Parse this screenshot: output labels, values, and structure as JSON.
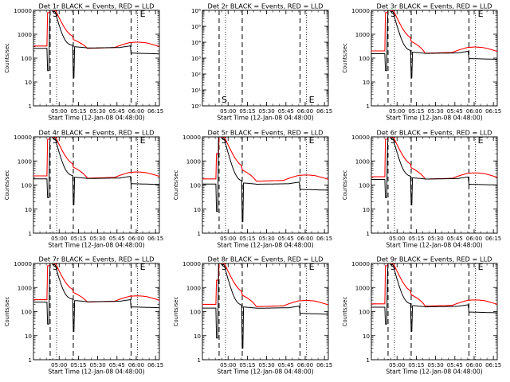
{
  "figure": {
    "background": "#ffffff",
    "frame_color": "#000000",
    "events_color": "#000000",
    "lld_color": "#ff0000"
  },
  "chart_data": [
    {
      "type": "line",
      "title": "Det 1r BLACK = Events, RED = LLD",
      "xlabel": "Start Time (12-Jan-08 04:48:00)",
      "ylabel": "Counts/sec",
      "yscale": "log",
      "ylim": [
        1,
        10000
      ],
      "ytick_labels": [
        "1",
        "10",
        "100",
        "1000",
        "10000"
      ],
      "xtick_labels": [
        "05:00",
        "05:15",
        "05:30",
        "05:45",
        "06:00",
        "06:15"
      ],
      "x_minutes": [
        -2,
        10,
        20,
        30,
        40,
        50,
        60,
        70,
        80,
        90
      ],
      "dashed_markers_min": [
        5,
        23,
        68
      ],
      "dotted_markers_min": [
        10,
        73
      ],
      "marker_labels": [
        {
          "text": "S",
          "at_min": 5
        },
        {
          "text": "E",
          "at_min": 73
        }
      ],
      "has_data": true,
      "profile": "A",
      "events_base": 270,
      "events_step": 170,
      "lld_base": 320,
      "lld_peak": 600
    },
    {
      "type": "line",
      "title": "Det 2r BLACK = Events, RED = LLD",
      "xlabel": "Start Time (12-Jan-08 04:48:00)",
      "ylabel": "",
      "yscale": "log",
      "ylim": [
        1,
        1000000
      ],
      "ytick_labels": [
        "10⁰",
        "10¹",
        "10²",
        "10³",
        "10⁴",
        "10⁵",
        "10⁶"
      ],
      "xtick_labels": [
        "05:00",
        "05:15",
        "05:30",
        "05:45",
        "06:00",
        "06:15"
      ],
      "x_minutes": [
        -2,
        10,
        20,
        30,
        40,
        50,
        60,
        70,
        80,
        90
      ],
      "dashed_markers_min": [
        5,
        23,
        68
      ],
      "dotted_markers_min": [
        10,
        73
      ],
      "marker_labels": [
        {
          "text": "S",
          "at_min": 5
        },
        {
          "text": "E",
          "at_min": 73
        }
      ],
      "has_data": false
    },
    {
      "type": "line",
      "title": "Det 3r BLACK = Events, RED = LLD",
      "xlabel": "Start Time (12-Jan-08 04:48:00)",
      "ylabel": "Counts/sec",
      "yscale": "log",
      "ylim": [
        1,
        10000
      ],
      "ytick_labels": [
        "1",
        "10",
        "100",
        "1000",
        "10000"
      ],
      "xtick_labels": [
        "05:00",
        "05:15",
        "05:30",
        "05:45",
        "06:00",
        "06:15"
      ],
      "x_minutes": [
        -2,
        10,
        20,
        30,
        40,
        50,
        60,
        70,
        80,
        90
      ],
      "dashed_markers_min": [
        5,
        23,
        68
      ],
      "dotted_markers_min": [
        10,
        73
      ],
      "marker_labels": [
        {
          "text": "S",
          "at_min": 5
        },
        {
          "text": "E",
          "at_min": 73
        }
      ],
      "has_data": true,
      "profile": "A",
      "events_base": 160,
      "events_step": 110,
      "lld_base": 200,
      "lld_peak": 500
    },
    {
      "type": "line",
      "title": "Det 4r BLACK = Events, RED = LLD",
      "xlabel": "Start Time (12-Jan-08 04:48:00)",
      "ylabel": "Counts/sec",
      "yscale": "log",
      "ylim": [
        1,
        10000
      ],
      "ytick_labels": [
        "1",
        "10",
        "100",
        "1000",
        "10000"
      ],
      "xtick_labels": [
        "05:00",
        "05:15",
        "05:30",
        "05:45",
        "06:00",
        "06:15"
      ],
      "x_minutes": [
        -2,
        10,
        20,
        30,
        40,
        50,
        60,
        70,
        80,
        90
      ],
      "dashed_markers_min": [
        5,
        23,
        68
      ],
      "dotted_markers_min": [
        10,
        73
      ],
      "marker_labels": [
        {
          "text": "S",
          "at_min": 5
        },
        {
          "text": "E",
          "at_min": 73
        }
      ],
      "has_data": true,
      "profile": "A",
      "events_base": 190,
      "events_step": 180,
      "lld_base": 240,
      "lld_peak": 550
    },
    {
      "type": "line",
      "title": "Det 5r BLACK = Events, RED = LLD",
      "xlabel": "Start Time (12-Jan-08 04:48:00)",
      "ylabel": "Counts/sec",
      "yscale": "log",
      "ylim": [
        1,
        10000
      ],
      "ytick_labels": [
        "1",
        "10",
        "100",
        "1000",
        "10000"
      ],
      "xtick_labels": [
        "05:00",
        "05:15",
        "05:30",
        "05:45",
        "06:00",
        "06:15"
      ],
      "x_minutes": [
        -2,
        10,
        20,
        30,
        40,
        50,
        60,
        70,
        80,
        90
      ],
      "dashed_markers_min": [
        5,
        23,
        68
      ],
      "dotted_markers_min": [
        10,
        73
      ],
      "marker_labels": [
        {
          "text": "S",
          "at_min": 5
        },
        {
          "text": "E",
          "at_min": 73
        }
      ],
      "has_data": true,
      "profile": "B",
      "events_base": 110,
      "events_step": 100,
      "lld_base": 180,
      "lld_peak": 420
    },
    {
      "type": "line",
      "title": "Det 6r BLACK = Events, RED = LLD",
      "xlabel": "Start Time (12-Jan-08 04:48:00)",
      "ylabel": "Counts/sec",
      "yscale": "log",
      "ylim": [
        1,
        10000
      ],
      "ytick_labels": [
        "1",
        "10",
        "100",
        "1000",
        "10000"
      ],
      "xtick_labels": [
        "05:00",
        "05:15",
        "05:30",
        "05:45",
        "06:00",
        "06:15"
      ],
      "x_minutes": [
        -2,
        10,
        20,
        30,
        40,
        50,
        60,
        70,
        80,
        90
      ],
      "dashed_markers_min": [
        5,
        23,
        68
      ],
      "dotted_markers_min": [
        10,
        73
      ],
      "marker_labels": [
        {
          "text": "S",
          "at_min": 5
        },
        {
          "text": "E",
          "at_min": 73
        }
      ],
      "has_data": true,
      "profile": "A",
      "events_base": 180,
      "events_step": 170,
      "lld_base": 220,
      "lld_peak": 520
    },
    {
      "type": "line",
      "title": "Det 7r BLACK = Events, RED = LLD",
      "xlabel": "Start Time (12-Jan-08 04:48:00)",
      "ylabel": "Counts/sec",
      "yscale": "log",
      "ylim": [
        1,
        10000
      ],
      "ytick_labels": [
        "1",
        "10",
        "100",
        "1000",
        "10000"
      ],
      "xtick_labels": [
        "05:00",
        "05:15",
        "05:30",
        "05:45",
        "06:00",
        "06:15"
      ],
      "x_minutes": [
        -2,
        10,
        20,
        30,
        40,
        50,
        60,
        70,
        80,
        90
      ],
      "dashed_markers_min": [
        5,
        23,
        68
      ],
      "dotted_markers_min": [
        10,
        73
      ],
      "marker_labels": [
        {
          "text": "S",
          "at_min": 5
        },
        {
          "text": "E",
          "at_min": 73
        }
      ],
      "has_data": true,
      "profile": "A",
      "events_base": 260,
      "events_step": 200,
      "lld_base": 310,
      "lld_peak": 620
    },
    {
      "type": "line",
      "title": "Det 8r BLACK = Events, RED = LLD",
      "xlabel": "Start Time (12-Jan-08 04:48:00)",
      "ylabel": "Counts/sec",
      "yscale": "log",
      "ylim": [
        1,
        10000
      ],
      "ytick_labels": [
        "1",
        "10",
        "100",
        "1000",
        "10000"
      ],
      "xtick_labels": [
        "05:00",
        "05:15",
        "05:30",
        "05:45",
        "06:00",
        "06:15"
      ],
      "x_minutes": [
        -2,
        10,
        20,
        30,
        40,
        50,
        60,
        70,
        80,
        90
      ],
      "dashed_markers_min": [
        5,
        23,
        68
      ],
      "dotted_markers_min": [
        10,
        73
      ],
      "marker_labels": [
        {
          "text": "S",
          "at_min": 5
        },
        {
          "text": "E",
          "at_min": 73
        }
      ],
      "has_data": true,
      "profile": "B",
      "events_base": 140,
      "events_step": 140,
      "lld_base": 200,
      "lld_peak": 480
    },
    {
      "type": "line",
      "title": "Det 9r BLACK = Events, RED = LLD",
      "xlabel": "Start Time (12-Jan-08 04:48:00)",
      "ylabel": "Counts/sec",
      "yscale": "log",
      "ylim": [
        1,
        10000
      ],
      "ytick_labels": [
        "1",
        "10",
        "100",
        "1000",
        "10000"
      ],
      "xtick_labels": [
        "05:00",
        "05:15",
        "05:30",
        "05:45",
        "06:00",
        "06:15"
      ],
      "x_minutes": [
        -2,
        10,
        20,
        30,
        40,
        50,
        60,
        70,
        80,
        90
      ],
      "dashed_markers_min": [
        5,
        23,
        68
      ],
      "dotted_markers_min": [
        10,
        73
      ],
      "marker_labels": [
        {
          "text": "S",
          "at_min": 5
        },
        {
          "text": "E",
          "at_min": 73
        }
      ],
      "has_data": true,
      "profile": "A",
      "events_base": 160,
      "events_step": 160,
      "lld_base": 210,
      "lld_peak": 500
    }
  ]
}
